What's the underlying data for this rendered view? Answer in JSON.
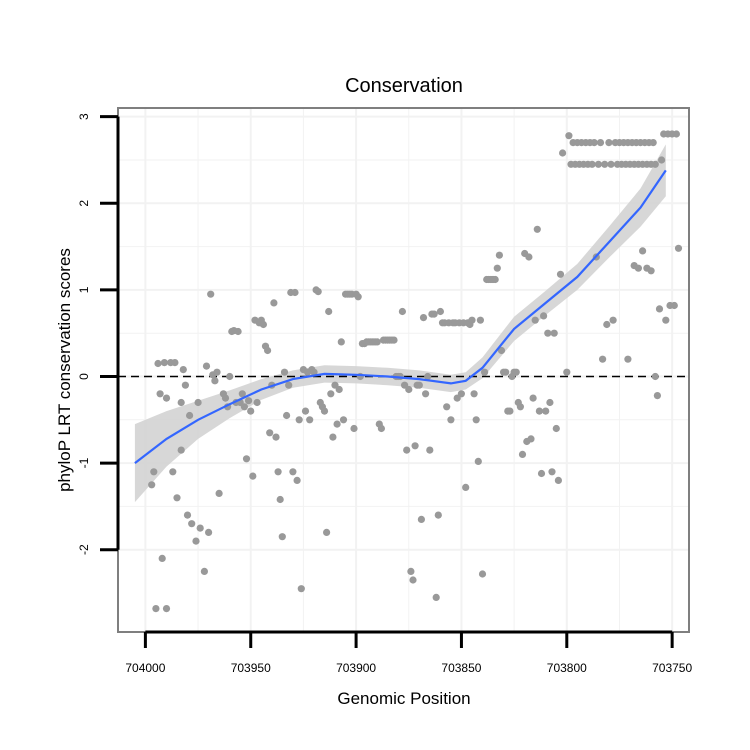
{
  "chart_data": {
    "type": "scatter",
    "title": "Conservation",
    "xlabel": "Genomic Position",
    "ylabel": "phyloP LRT conservation scores",
    "x_reversed": true,
    "xlim": [
      704013,
      703742
    ],
    "ylim": [
      -2.95,
      3.1
    ],
    "x_ticks": [
      704000,
      703950,
      703900,
      703850,
      703800,
      703750
    ],
    "y_ticks": [
      -2,
      -1,
      0,
      1,
      2,
      3
    ],
    "grid": true,
    "reference_line": {
      "y": 0,
      "style": "dashed"
    },
    "colors": {
      "points": "#999999",
      "smooth": "#3366FF",
      "band": "#D3D3D3",
      "panel_border": "#7F7F7F",
      "grid": "#F2F2F2"
    },
    "points": [
      [
        703995,
        -2.68
      ],
      [
        703990,
        -2.68
      ],
      [
        703992,
        -2.1
      ],
      [
        703983,
        -0.85
      ],
      [
        703997,
        -1.25
      ],
      [
        703996,
        -1.1
      ],
      [
        703994,
        0.15
      ],
      [
        703991,
        0.16
      ],
      [
        703988,
        0.16
      ],
      [
        703986,
        0.16
      ],
      [
        703993,
        -0.2
      ],
      [
        703990,
        -0.25
      ],
      [
        703987,
        -1.1
      ],
      [
        703985,
        -1.4
      ],
      [
        703983,
        -0.3
      ],
      [
        703982,
        0.08
      ],
      [
        703981,
        -0.1
      ],
      [
        703980,
        -1.6
      ],
      [
        703978,
        -1.7
      ],
      [
        703976,
        -1.9
      ],
      [
        703975,
        -0.3
      ],
      [
        703979,
        -0.45
      ],
      [
        703974,
        -1.75
      ],
      [
        703972,
        -2.25
      ],
      [
        703971,
        0.12
      ],
      [
        703970,
        -1.8
      ],
      [
        703969,
        0.95
      ],
      [
        703968,
        0.02
      ],
      [
        703967,
        -0.05
      ],
      [
        703966,
        0.05
      ],
      [
        703965,
        -1.35
      ],
      [
        703963,
        -0.2
      ],
      [
        703962,
        -0.25
      ],
      [
        703961,
        -0.35
      ],
      [
        703960,
        0.0
      ],
      [
        703959,
        0.52
      ],
      [
        703958,
        0.53
      ],
      [
        703957,
        -0.3
      ],
      [
        703956,
        0.52
      ],
      [
        703955,
        -0.3
      ],
      [
        703954,
        -0.2
      ],
      [
        703953,
        -0.35
      ],
      [
        703952,
        -0.95
      ],
      [
        703951,
        -0.28
      ],
      [
        703950,
        -0.4
      ],
      [
        703949,
        -1.15
      ],
      [
        703948,
        0.65
      ],
      [
        703947,
        -0.3
      ],
      [
        703946,
        0.62
      ],
      [
        703945,
        0.65
      ],
      [
        703944,
        0.6
      ],
      [
        703943,
        0.35
      ],
      [
        703942,
        0.3
      ],
      [
        703941,
        -0.65
      ],
      [
        703940,
        -0.1
      ],
      [
        703939,
        0.85
      ],
      [
        703938,
        -0.7
      ],
      [
        703937,
        -1.1
      ],
      [
        703936,
        -1.42
      ],
      [
        703935,
        -1.85
      ],
      [
        703934,
        0.05
      ],
      [
        703933,
        -0.45
      ],
      [
        703932,
        -0.1
      ],
      [
        703931,
        0.97
      ],
      [
        703930,
        -1.1
      ],
      [
        703929,
        0.97
      ],
      [
        703928,
        -1.2
      ],
      [
        703927,
        -0.5
      ],
      [
        703926,
        -2.45
      ],
      [
        703925,
        0.08
      ],
      [
        703924,
        -0.4
      ],
      [
        703923,
        0.05
      ],
      [
        703922,
        -0.5
      ],
      [
        703921,
        0.08
      ],
      [
        703920,
        0.05
      ],
      [
        703919,
        1.0
      ],
      [
        703918,
        0.98
      ],
      [
        703917,
        -0.3
      ],
      [
        703916,
        -0.35
      ],
      [
        703915,
        -0.4
      ],
      [
        703914,
        -1.8
      ],
      [
        703913,
        0.75
      ],
      [
        703912,
        -0.2
      ],
      [
        703911,
        -0.7
      ],
      [
        703910,
        -0.1
      ],
      [
        703909,
        -0.55
      ],
      [
        703908,
        -0.15
      ],
      [
        703907,
        0.4
      ],
      [
        703906,
        -0.5
      ],
      [
        703905,
        0.95
      ],
      [
        703904,
        0.95
      ],
      [
        703903,
        0.95
      ],
      [
        703902,
        0.95
      ],
      [
        703901,
        -0.6
      ],
      [
        703900,
        0.95
      ],
      [
        703899,
        0.92
      ],
      [
        703898,
        0.0
      ],
      [
        703897,
        0.38
      ],
      [
        703896,
        0.38
      ],
      [
        703895,
        0.4
      ],
      [
        703894,
        0.4
      ],
      [
        703893,
        0.4
      ],
      [
        703892,
        0.4
      ],
      [
        703891,
        0.4
      ],
      [
        703890,
        0.4
      ],
      [
        703889,
        -0.55
      ],
      [
        703888,
        -0.6
      ],
      [
        703887,
        0.42
      ],
      [
        703886,
        0.42
      ],
      [
        703885,
        0.42
      ],
      [
        703884,
        0.42
      ],
      [
        703883,
        0.42
      ],
      [
        703882,
        0.42
      ],
      [
        703881,
        0.0
      ],
      [
        703880,
        0.0
      ],
      [
        703879,
        0.0
      ],
      [
        703878,
        0.75
      ],
      [
        703877,
        -0.1
      ],
      [
        703876,
        -0.85
      ],
      [
        703875,
        -0.15
      ],
      [
        703874,
        -2.25
      ],
      [
        703873,
        -2.35
      ],
      [
        703872,
        -0.8
      ],
      [
        703871,
        -0.1
      ],
      [
        703870,
        -0.1
      ],
      [
        703869,
        -1.65
      ],
      [
        703868,
        0.68
      ],
      [
        703867,
        -0.2
      ],
      [
        703866,
        0.0
      ],
      [
        703865,
        -0.85
      ],
      [
        703864,
        0.72
      ],
      [
        703863,
        0.72
      ],
      [
        703862,
        -2.55
      ],
      [
        703861,
        -1.6
      ],
      [
        703860,
        0.75
      ],
      [
        703859,
        0.62
      ],
      [
        703858,
        0.62
      ],
      [
        703857,
        -0.35
      ],
      [
        703856,
        0.62
      ],
      [
        703855,
        -0.5
      ],
      [
        703854,
        0.62
      ],
      [
        703853,
        0.62
      ],
      [
        703852,
        -0.25
      ],
      [
        703851,
        0.62
      ],
      [
        703850,
        -0.2
      ],
      [
        703849,
        0.62
      ],
      [
        703848,
        -1.28
      ],
      [
        703847,
        0.62
      ],
      [
        703846,
        0.6
      ],
      [
        703845,
        0.65
      ],
      [
        703844,
        -0.2
      ],
      [
        703843,
        -0.5
      ],
      [
        703842,
        -0.98
      ],
      [
        703841,
        0.65
      ],
      [
        703840,
        -2.28
      ],
      [
        703839,
        0.05
      ],
      [
        703838,
        1.12
      ],
      [
        703837,
        1.12
      ],
      [
        703836,
        1.12
      ],
      [
        703835,
        1.12
      ],
      [
        703834,
        1.12
      ],
      [
        703833,
        1.25
      ],
      [
        703832,
        1.4
      ],
      [
        703831,
        0.3
      ],
      [
        703830,
        0.05
      ],
      [
        703829,
        0.05
      ],
      [
        703828,
        -0.4
      ],
      [
        703827,
        -0.4
      ],
      [
        703826,
        0.0
      ],
      [
        703825,
        0.05
      ],
      [
        703824,
        0.05
      ],
      [
        703823,
        -0.3
      ],
      [
        703822,
        -0.35
      ],
      [
        703821,
        -0.9
      ],
      [
        703820,
        1.42
      ],
      [
        703819,
        -0.75
      ],
      [
        703818,
        1.38
      ],
      [
        703817,
        -0.72
      ],
      [
        703816,
        -0.25
      ],
      [
        703815,
        0.65
      ],
      [
        703814,
        1.7
      ],
      [
        703813,
        -0.4
      ],
      [
        703812,
        -1.12
      ],
      [
        703811,
        0.7
      ],
      [
        703810,
        -0.4
      ],
      [
        703809,
        0.5
      ],
      [
        703808,
        -0.3
      ],
      [
        703807,
        -1.1
      ],
      [
        703806,
        0.5
      ],
      [
        703805,
        -0.6
      ],
      [
        703804,
        -1.2
      ],
      [
        703803,
        1.18
      ],
      [
        703802,
        2.58
      ],
      [
        703800,
        0.05
      ],
      [
        703799,
        2.78
      ],
      [
        703798,
        2.45
      ],
      [
        703797,
        2.7
      ],
      [
        703796,
        2.45
      ],
      [
        703795,
        2.7
      ],
      [
        703794,
        2.45
      ],
      [
        703793,
        2.7
      ],
      [
        703792,
        2.45
      ],
      [
        703791,
        2.7
      ],
      [
        703790,
        2.45
      ],
      [
        703789,
        2.7
      ],
      [
        703788,
        2.45
      ],
      [
        703787,
        2.7
      ],
      [
        703786,
        1.38
      ],
      [
        703785,
        2.45
      ],
      [
        703784,
        2.7
      ],
      [
        703783,
        0.2
      ],
      [
        703782,
        2.45
      ],
      [
        703781,
        0.6
      ],
      [
        703780,
        2.7
      ],
      [
        703779,
        2.45
      ],
      [
        703778,
        0.65
      ],
      [
        703777,
        2.7
      ],
      [
        703776,
        2.45
      ],
      [
        703775,
        2.7
      ],
      [
        703774,
        2.45
      ],
      [
        703773,
        2.7
      ],
      [
        703772,
        2.45
      ],
      [
        703771,
        2.7
      ],
      [
        703770,
        2.45
      ],
      [
        703769,
        2.7
      ],
      [
        703768,
        2.45
      ],
      [
        703767,
        2.7
      ],
      [
        703766,
        2.45
      ],
      [
        703765,
        2.7
      ],
      [
        703764,
        2.45
      ],
      [
        703763,
        2.7
      ],
      [
        703762,
        2.45
      ],
      [
        703761,
        2.7
      ],
      [
        703760,
        2.45
      ],
      [
        703759,
        2.7
      ],
      [
        703758,
        2.45
      ],
      [
        703757,
        -0.22
      ],
      [
        703771,
        0.2
      ],
      [
        703768,
        1.28
      ],
      [
        703766,
        1.25
      ],
      [
        703764,
        1.45
      ],
      [
        703762,
        1.25
      ],
      [
        703760,
        1.22
      ],
      [
        703758,
        0.0
      ],
      [
        703756,
        0.78
      ],
      [
        703755,
        2.5
      ],
      [
        703754,
        2.8
      ],
      [
        703753,
        0.65
      ],
      [
        703752,
        2.8
      ],
      [
        703751,
        0.82
      ],
      [
        703750,
        2.8
      ],
      [
        703749,
        0.82
      ],
      [
        703748,
        2.8
      ],
      [
        703747,
        1.48
      ]
    ],
    "smooth": {
      "x": [
        704005,
        703990,
        703975,
        703960,
        703945,
        703930,
        703915,
        703900,
        703885,
        703870,
        703855,
        703848,
        703840,
        703825,
        703810,
        703795,
        703780,
        703765,
        703753
      ],
      "y": [
        -1.0,
        -0.72,
        -0.5,
        -0.32,
        -0.15,
        -0.03,
        0.03,
        0.02,
        0.0,
        -0.03,
        -0.08,
        -0.05,
        0.1,
        0.55,
        0.85,
        1.15,
        1.55,
        1.95,
        2.38
      ],
      "se": [
        0.45,
        0.32,
        0.22,
        0.16,
        0.12,
        0.1,
        0.1,
        0.1,
        0.1,
        0.1,
        0.1,
        0.1,
        0.12,
        0.14,
        0.14,
        0.15,
        0.18,
        0.22,
        0.3
      ]
    }
  }
}
